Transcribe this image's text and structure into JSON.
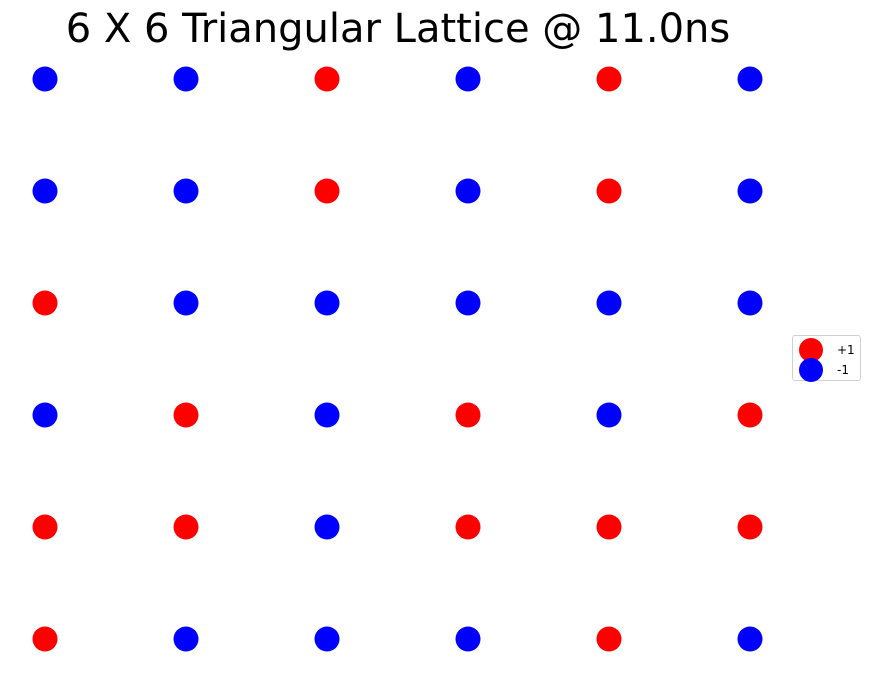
{
  "chart_data": {
    "type": "scatter",
    "title": "6 X 6 Triangular Lattice @ 11.0ns",
    "xlabel": "",
    "ylabel": "",
    "axes_visible": false,
    "grid": false,
    "legend_position": "center-right",
    "columns": 6,
    "rows": 6,
    "series": [
      {
        "name": "+1",
        "color": "#ff0000"
      },
      {
        "name": "-1",
        "color": "#0000ff"
      }
    ],
    "spins": [
      [
        -1,
        -1,
        1,
        -1,
        1,
        -1
      ],
      [
        -1,
        -1,
        1,
        -1,
        1,
        -1
      ],
      [
        1,
        -1,
        -1,
        -1,
        -1,
        -1
      ],
      [
        -1,
        1,
        -1,
        1,
        -1,
        1
      ],
      [
        1,
        1,
        -1,
        1,
        1,
        1
      ],
      [
        1,
        -1,
        -1,
        -1,
        1,
        -1
      ]
    ]
  }
}
